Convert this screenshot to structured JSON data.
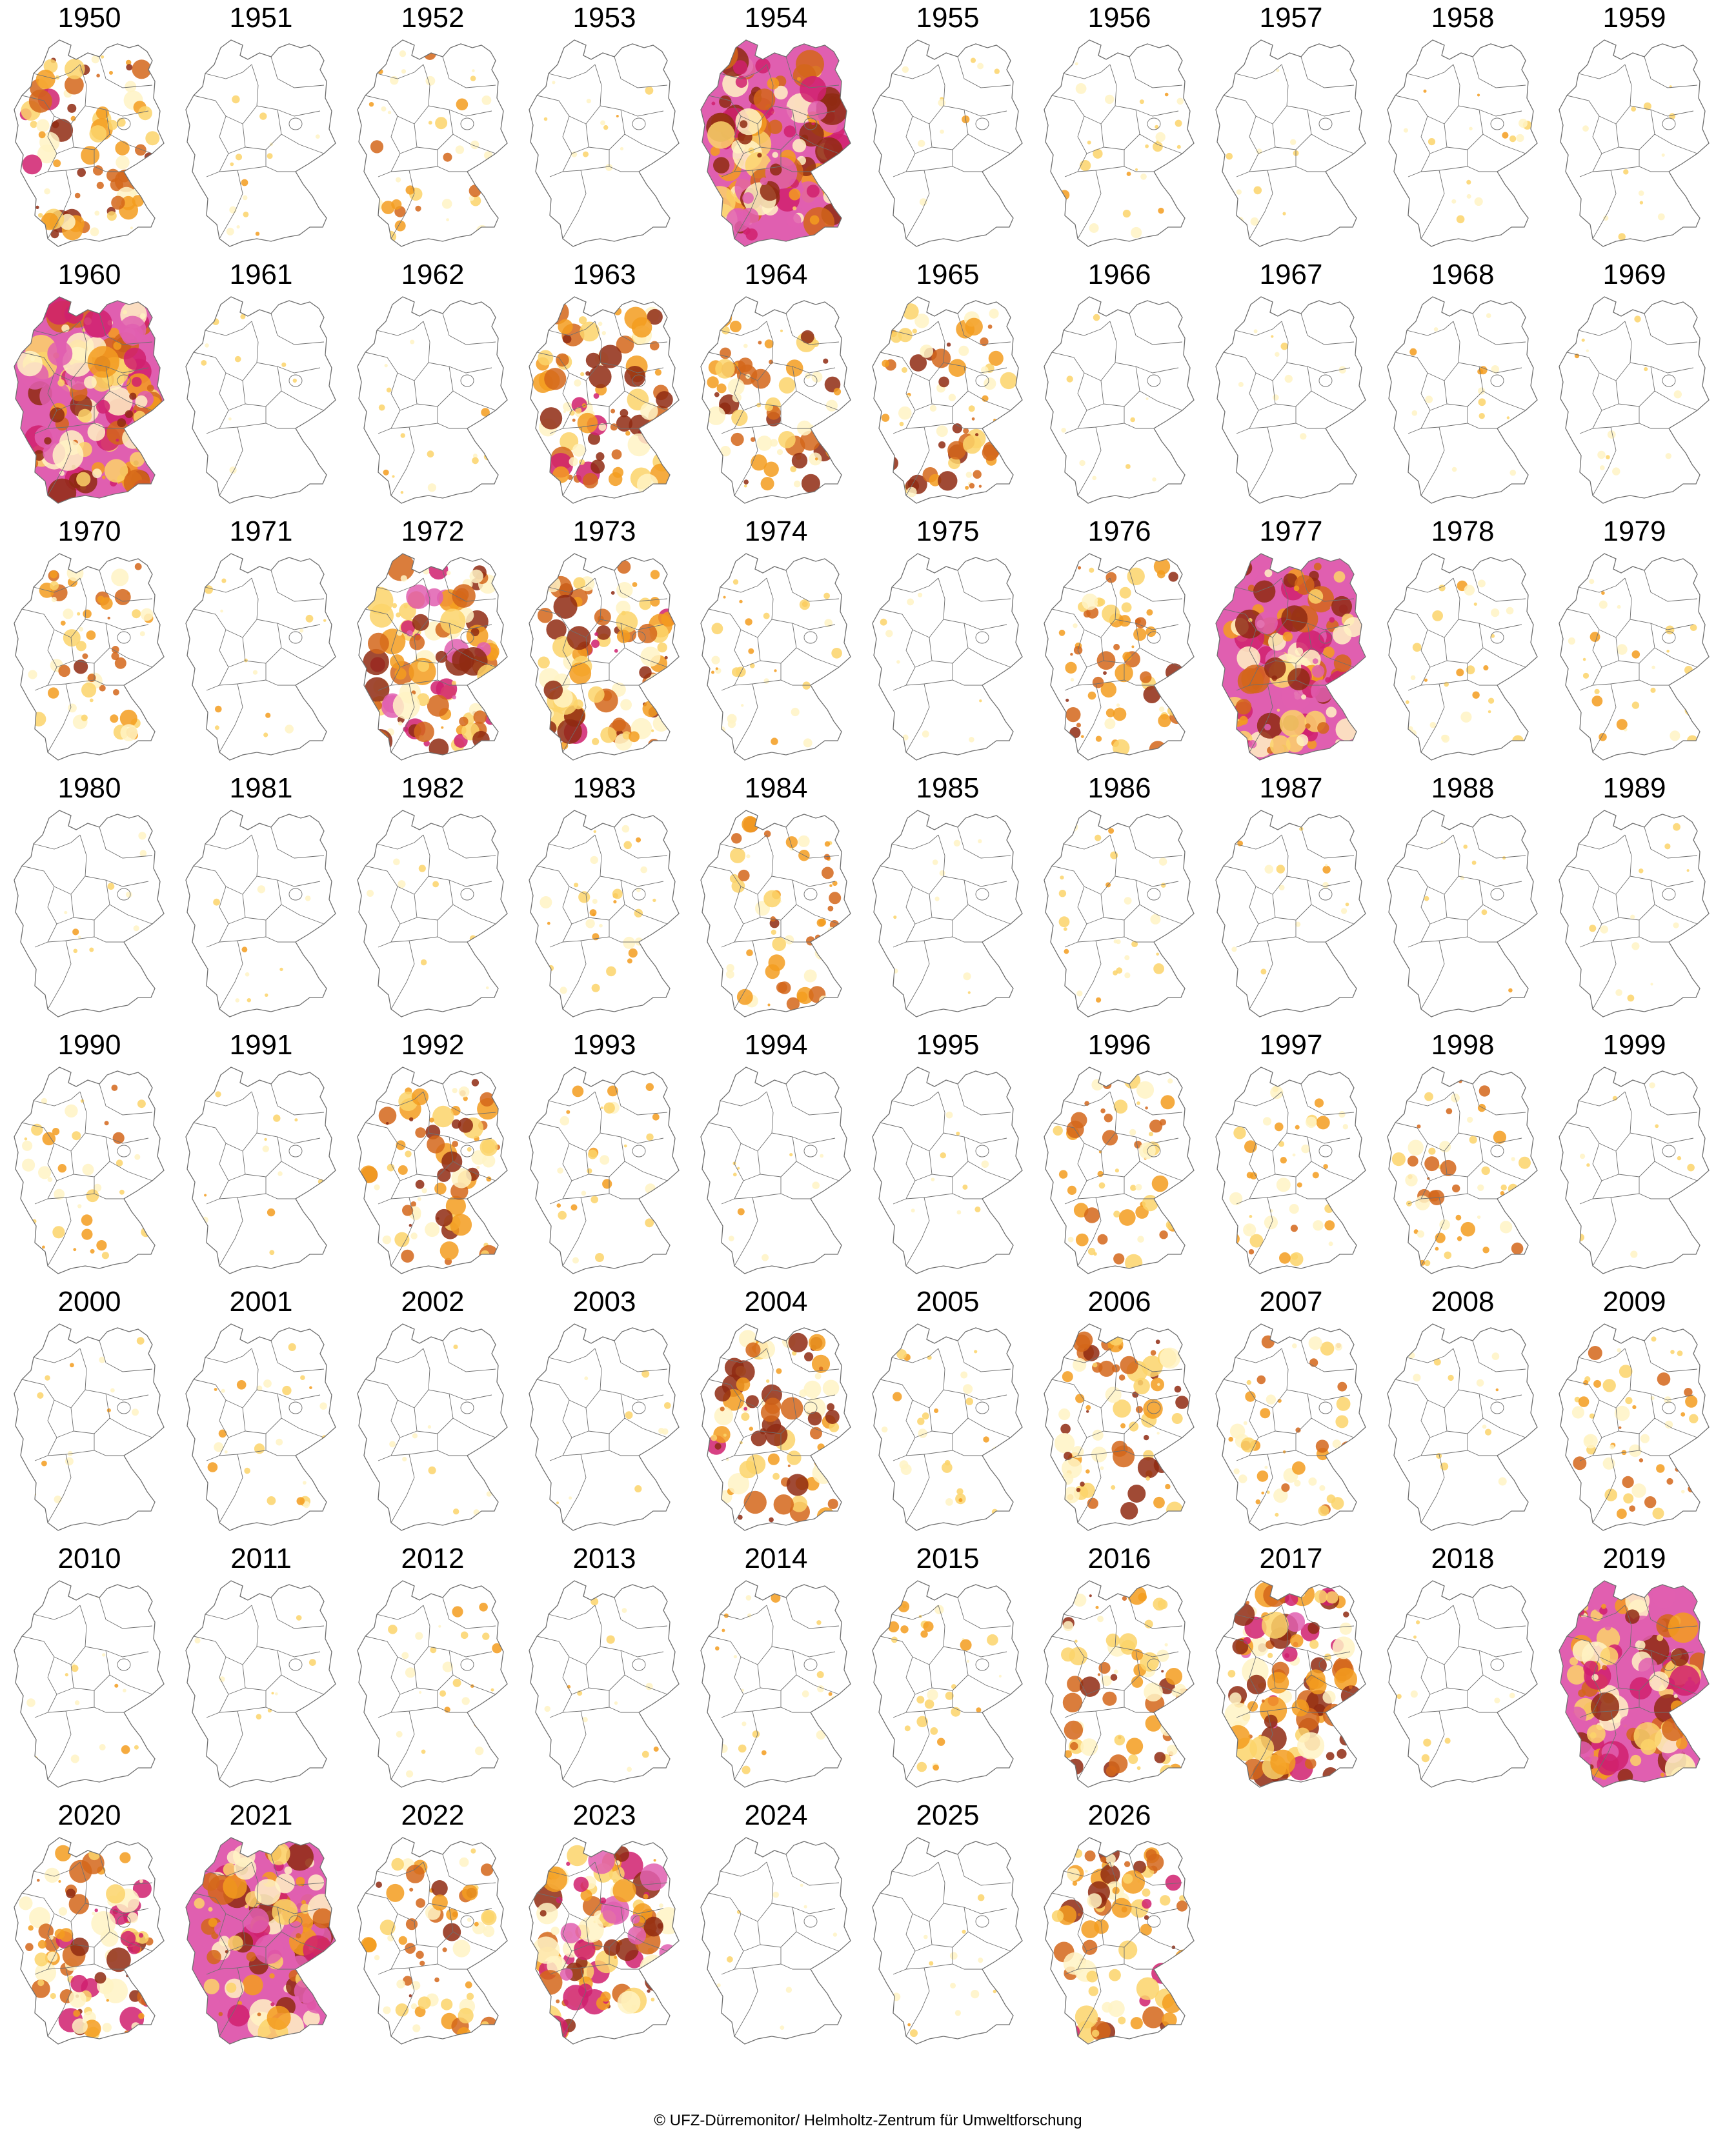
{
  "credit": "© UFZ-Dürremonitor/ Helmholtz-Zentrum für Umweltforschung",
  "colors": {
    "background": "#ffffff",
    "outline": "#6f6f6f",
    "drought_scale": [
      "#fff3c4",
      "#fcd46a",
      "#f39c1f",
      "#d3661a",
      "#8f2a12",
      "#d0206e",
      "#e05fb0"
    ]
  },
  "legend_note": "drought intensity shown by colour from pale yellow (weak) to magenta (extreme)",
  "years": [
    {
      "label": "1950",
      "drought": 0.55
    },
    {
      "label": "1951",
      "drought": 0.04
    },
    {
      "label": "1952",
      "drought": 0.22
    },
    {
      "label": "1953",
      "drought": 0.02
    },
    {
      "label": "1954",
      "drought": 0.92
    },
    {
      "label": "1955",
      "drought": 0.02
    },
    {
      "label": "1956",
      "drought": 0.12
    },
    {
      "label": "1957",
      "drought": 0.03
    },
    {
      "label": "1958",
      "drought": 0.05
    },
    {
      "label": "1959",
      "drought": 0.03
    },
    {
      "label": "1960",
      "drought": 0.85
    },
    {
      "label": "1961",
      "drought": 0.01
    },
    {
      "label": "1962",
      "drought": 0.06
    },
    {
      "label": "1963",
      "drought": 0.6
    },
    {
      "label": "1964",
      "drought": 0.45
    },
    {
      "label": "1965",
      "drought": 0.45
    },
    {
      "label": "1966",
      "drought": 0.01
    },
    {
      "label": "1967",
      "drought": 0.01
    },
    {
      "label": "1968",
      "drought": 0.04
    },
    {
      "label": "1969",
      "drought": 0.04
    },
    {
      "label": "1970",
      "drought": 0.35
    },
    {
      "label": "1971",
      "drought": 0.04
    },
    {
      "label": "1972",
      "drought": 0.75
    },
    {
      "label": "1973",
      "drought": 0.6
    },
    {
      "label": "1974",
      "drought": 0.15
    },
    {
      "label": "1975",
      "drought": 0.01
    },
    {
      "label": "1976",
      "drought": 0.4
    },
    {
      "label": "1977",
      "drought": 0.8
    },
    {
      "label": "1978",
      "drought": 0.15
    },
    {
      "label": "1979",
      "drought": 0.12
    },
    {
      "label": "1980",
      "drought": 0.02
    },
    {
      "label": "1981",
      "drought": 0.01
    },
    {
      "label": "1982",
      "drought": 0.01
    },
    {
      "label": "1983",
      "drought": 0.18
    },
    {
      "label": "1984",
      "drought": 0.35
    },
    {
      "label": "1985",
      "drought": 0.01
    },
    {
      "label": "1986",
      "drought": 0.12
    },
    {
      "label": "1987",
      "drought": 0.04
    },
    {
      "label": "1988",
      "drought": 0.01
    },
    {
      "label": "1989",
      "drought": 0.03
    },
    {
      "label": "1990",
      "drought": 0.2
    },
    {
      "label": "1991",
      "drought": 0.03
    },
    {
      "label": "1992",
      "drought": 0.5
    },
    {
      "label": "1993",
      "drought": 0.15
    },
    {
      "label": "1994",
      "drought": 0.01
    },
    {
      "label": "1995",
      "drought": 0.01
    },
    {
      "label": "1996",
      "drought": 0.35
    },
    {
      "label": "1997",
      "drought": 0.25
    },
    {
      "label": "1998",
      "drought": 0.3
    },
    {
      "label": "1999",
      "drought": 0.01
    },
    {
      "label": "2000",
      "drought": 0.04
    },
    {
      "label": "2001",
      "drought": 0.12
    },
    {
      "label": "2002",
      "drought": 0.01
    },
    {
      "label": "2003",
      "drought": 0.01
    },
    {
      "label": "2004",
      "drought": 0.55
    },
    {
      "label": "2005",
      "drought": 0.12
    },
    {
      "label": "2006",
      "drought": 0.5
    },
    {
      "label": "2007",
      "drought": 0.3
    },
    {
      "label": "2008",
      "drought": 0.03
    },
    {
      "label": "2009",
      "drought": 0.3
    },
    {
      "label": "2010",
      "drought": 0.04
    },
    {
      "label": "2011",
      "drought": 0.01
    },
    {
      "label": "2012",
      "drought": 0.12
    },
    {
      "label": "2013",
      "drought": 0.04
    },
    {
      "label": "2014",
      "drought": 0.1
    },
    {
      "label": "2015",
      "drought": 0.15
    },
    {
      "label": "2016",
      "drought": 0.45
    },
    {
      "label": "2017",
      "drought": 0.7
    },
    {
      "label": "2018",
      "drought": 0.01
    },
    {
      "label": "2019",
      "drought": 0.85
    },
    {
      "label": "2020",
      "drought": 0.6
    },
    {
      "label": "2021",
      "drought": 0.8
    },
    {
      "label": "2022",
      "drought": 0.4
    },
    {
      "label": "2023",
      "drought": 0.75
    },
    {
      "label": "2024",
      "drought": 0.01
    },
    {
      "label": "2025",
      "drought": 0.04
    },
    {
      "label": "2026",
      "drought": 0.55
    }
  ]
}
